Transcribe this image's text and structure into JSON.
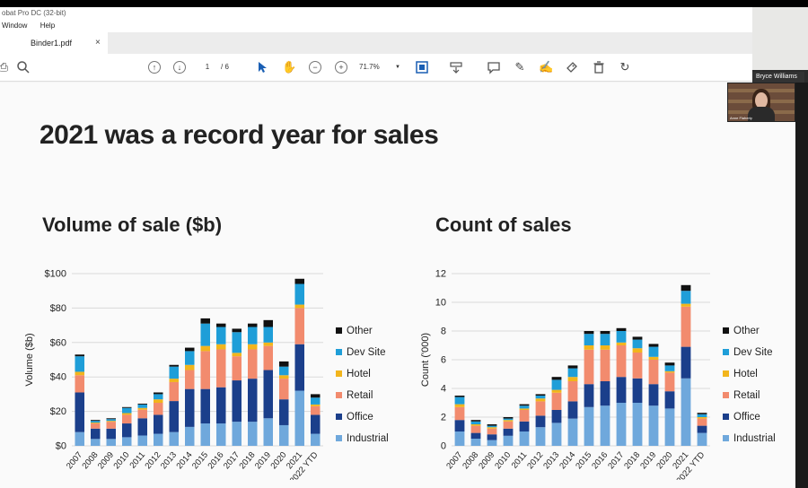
{
  "app": {
    "title_fragment": "obat Pro DC (32-bit)",
    "menu": [
      "Window",
      "Help"
    ],
    "tab": {
      "name": "Binder1.pdf",
      "close": "×"
    },
    "toolbar": {
      "page_current": "1",
      "page_total": "/ 6",
      "zoom": "71.7%"
    }
  },
  "webcam": {
    "participant_name": "Bryce Williams",
    "thumb_label": "Anne Flaherty"
  },
  "slide": {
    "title": "2021 was a record year for sales"
  },
  "legend": [
    "Other",
    "Dev Site",
    "Hotel",
    "Retail",
    "Office",
    "Industrial"
  ],
  "colors": {
    "Other": "#111111",
    "Dev Site": "#1f9ed8",
    "Hotel": "#f2b51c",
    "Retail": "#f28b6e",
    "Office": "#1b3f8b",
    "Industrial": "#6fa8dc"
  },
  "chart_data": [
    {
      "type": "bar",
      "stacked": true,
      "title": "Volume of sale ($b)",
      "ylabel": "Volume ($b)",
      "ylim": [
        0,
        100
      ],
      "yticks": [
        "$0",
        "$20",
        "$40",
        "$60",
        "$80",
        "$100"
      ],
      "categories": [
        "2007",
        "2008",
        "2009",
        "2010",
        "2011",
        "2012",
        "2013",
        "2014",
        "2015",
        "2016",
        "2017",
        "2018",
        "2019",
        "2020",
        "2021",
        "2022 YTD"
      ],
      "series": [
        {
          "name": "Industrial",
          "values": [
            8,
            4,
            4,
            5,
            6,
            7,
            8,
            11,
            13,
            13,
            14,
            14,
            16,
            12,
            32,
            7
          ]
        },
        {
          "name": "Office",
          "values": [
            23,
            6,
            6,
            8,
            10,
            11,
            18,
            22,
            20,
            21,
            24,
            25,
            28,
            15,
            27,
            11
          ]
        },
        {
          "name": "Retail",
          "values": [
            10,
            3,
            4,
            5,
            5,
            7,
            11,
            11,
            22,
            22,
            14,
            17,
            14,
            12,
            21,
            5
          ]
        },
        {
          "name": "Hotel",
          "values": [
            2,
            0.5,
            0.5,
            1,
            1,
            2,
            2,
            3,
            3,
            3,
            2,
            3,
            2,
            2,
            2,
            1
          ]
        },
        {
          "name": "Dev Site",
          "values": [
            9,
            1,
            1,
            3,
            2,
            3,
            7,
            8,
            13,
            10,
            12,
            10,
            9,
            5,
            12,
            4
          ]
        },
        {
          "name": "Other",
          "values": [
            1,
            0.5,
            0.5,
            0.5,
            0.5,
            1,
            1,
            2,
            3,
            2,
            2,
            2,
            4,
            3,
            3,
            2
          ]
        }
      ]
    },
    {
      "type": "bar",
      "stacked": true,
      "title": "Count of sales",
      "ylabel": "Count ('000)",
      "ylim": [
        0,
        12
      ],
      "yticks": [
        "0",
        "2",
        "4",
        "6",
        "8",
        "10",
        "12"
      ],
      "categories": [
        "2007",
        "2008",
        "2009",
        "2010",
        "2011",
        "2012",
        "2013",
        "2014",
        "2015",
        "2016",
        "2017",
        "2018",
        "2019",
        "2020",
        "2021",
        "2022 YTD"
      ],
      "series": [
        {
          "name": "Industrial",
          "values": [
            1.0,
            0.5,
            0.4,
            0.7,
            1.0,
            1.3,
            1.6,
            1.9,
            2.7,
            2.8,
            3.0,
            3.0,
            2.8,
            2.6,
            4.7,
            0.9
          ]
        },
        {
          "name": "Office",
          "values": [
            0.8,
            0.4,
            0.4,
            0.5,
            0.7,
            0.8,
            0.9,
            1.2,
            1.6,
            1.7,
            1.8,
            1.7,
            1.5,
            1.2,
            2.2,
            0.5
          ]
        },
        {
          "name": "Retail",
          "values": [
            0.9,
            0.5,
            0.4,
            0.5,
            0.8,
            1.0,
            1.2,
            1.4,
            2.4,
            2.2,
            2.2,
            1.8,
            1.7,
            1.3,
            2.8,
            0.5
          ]
        },
        {
          "name": "Hotel",
          "values": [
            0.2,
            0.1,
            0.1,
            0.1,
            0.1,
            0.2,
            0.2,
            0.3,
            0.3,
            0.3,
            0.2,
            0.3,
            0.2,
            0.1,
            0.2,
            0.1
          ]
        },
        {
          "name": "Dev Site",
          "values": [
            0.5,
            0.2,
            0.1,
            0.1,
            0.2,
            0.2,
            0.7,
            0.6,
            0.8,
            0.8,
            0.8,
            0.6,
            0.7,
            0.4,
            0.9,
            0.2
          ]
        },
        {
          "name": "Other",
          "values": [
            0.1,
            0.1,
            0.1,
            0.1,
            0.1,
            0.1,
            0.2,
            0.2,
            0.2,
            0.2,
            0.2,
            0.2,
            0.2,
            0.2,
            0.4,
            0.1
          ]
        }
      ]
    }
  ]
}
